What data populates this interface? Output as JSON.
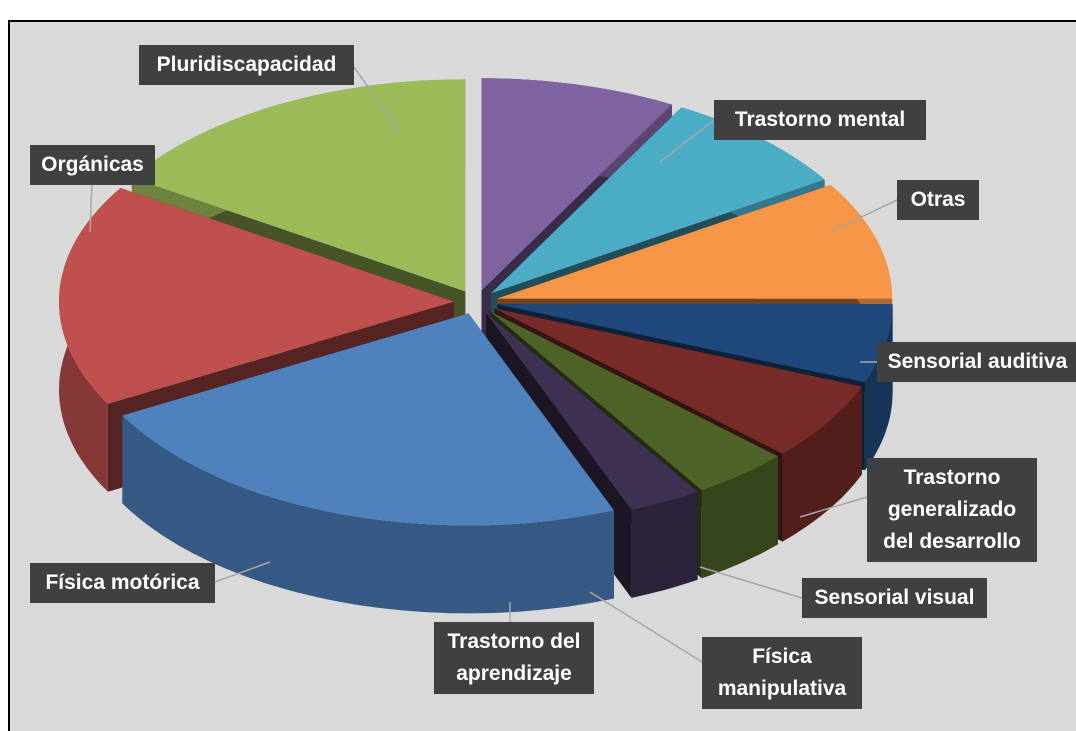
{
  "chart_data": {
    "type": "pie3d",
    "categories": [
      "Trastorno mental",
      "Otras",
      "Sensorial auditiva",
      "Trastorno generalizado del desarrollo",
      "Sensorial visual",
      "Física manipulativa",
      "Trastorno del aprendizaje",
      "Física motórica",
      "Orgánicas",
      "Pluridiscapacidad"
    ],
    "values": [
      8,
      8,
      9,
      6,
      6,
      4,
      3,
      23,
      17,
      16
    ],
    "colors": [
      "#8064a2",
      "#4bacc6",
      "#f79646",
      "#1f497d",
      "#772c2a",
      "#4f6228",
      "#3f3151",
      "#4f81bd",
      "#c0504d",
      "#9bbb59"
    ]
  }
}
